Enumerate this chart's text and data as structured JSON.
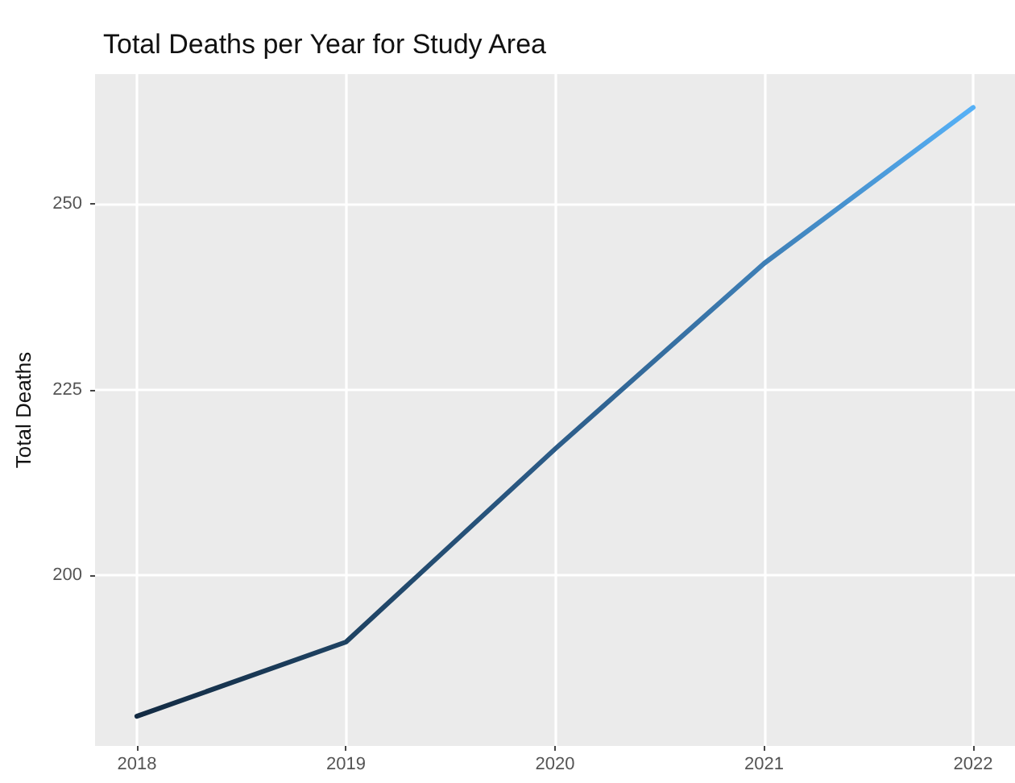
{
  "chart_data": {
    "type": "line",
    "title": "Total Deaths per Year for Study Area",
    "ylabel": "Total Deaths",
    "x": [
      2018,
      2019,
      2020,
      2021,
      2022
    ],
    "series": [
      {
        "values": [
          181,
          191,
          217,
          242,
          263
        ],
        "colors": [
          "#132b43",
          "#1e4262",
          "#2c5c88",
          "#3e7fb6",
          "#56b1f7"
        ]
      }
    ],
    "xlim": [
      2017.8,
      2022.2
    ],
    "xticks": [
      2018,
      2019,
      2020,
      2021,
      2022
    ],
    "ylim": [
      177,
      267.5
    ],
    "yticks": [
      200,
      225,
      250
    ],
    "grid": true,
    "marker": "none",
    "line_style": "solid"
  }
}
